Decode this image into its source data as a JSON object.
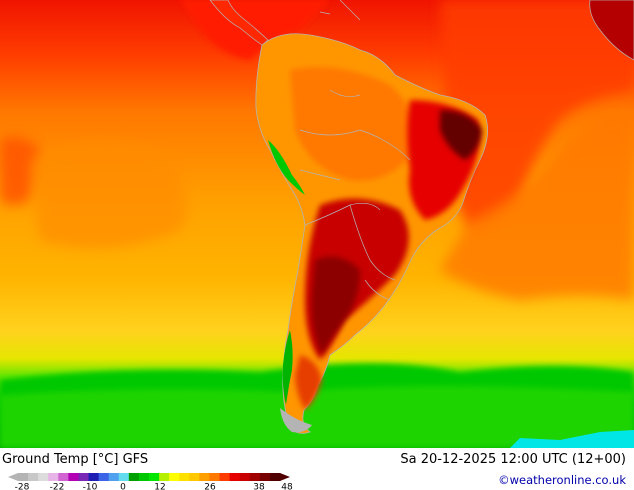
{
  "map": {
    "title": "Ground Temp [°C] GFS",
    "datetime": "Sa 20-12-2025 12:00 UTC (12+00)",
    "credit": "©weatheronline.co.uk"
  },
  "legend": {
    "ticks": [
      "-28",
      "-22",
      "-10",
      "0",
      "12",
      "26",
      "38",
      "48"
    ],
    "colors": [
      "#b4b4b4",
      "#c8c8c8",
      "#dcdcdc",
      "#e6b4e6",
      "#d264d2",
      "#b400b4",
      "#7828b4",
      "#1e1eb4",
      "#3c64e6",
      "#50a0f0",
      "#64dcf0",
      "#00a000",
      "#00c800",
      "#00e600",
      "#b4f000",
      "#ffff00",
      "#ffe100",
      "#ffc800",
      "#ffa000",
      "#ff7800",
      "#ff3c00",
      "#e60000",
      "#c80000",
      "#a00000",
      "#780000",
      "#500000"
    ]
  },
  "palette": {
    "ocean_warm": "#ff5a00",
    "ocean_mid": "#ffa000",
    "ocean_cool": "#ffc832",
    "cold_green": "#00c800",
    "land_hot": "#ff8c00",
    "land_very_hot": "#c80000",
    "land_extreme": "#640000",
    "border": "#b4b4b4"
  }
}
